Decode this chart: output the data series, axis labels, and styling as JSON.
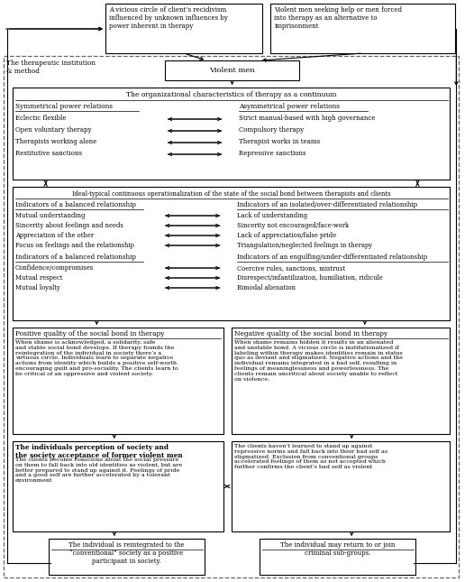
{
  "bg_color": "#ffffff",
  "top_box1_text": "A vicious circle of client’s recidivism\ninfluenced by unknown influences by\npower inherent in therapy",
  "top_box2_text": "Violent men seeking help or men forced\ninto therapy as an alternative to\nimprisonment",
  "inst_label": "The therapeutic institution\n& method",
  "violent_men": "Violent men",
  "org_title": "The organizational characteristics of therapy as a continuum",
  "sym_header": "Symmetrical power relations",
  "asym_header": "Asymmetrical power relations",
  "left_items": [
    "Eclectic flexible",
    "Open voluntary therapy",
    "Therapists working alone",
    "Restitutive sanctions"
  ],
  "right_items": [
    "Strict manual-based with high governance",
    "Compulsory therapy",
    "Therapist works in teams",
    "Repressive sanctions"
  ],
  "bond_title": "Ideal-typical continuous operationalization of the state of the social bond between therapists and clients",
  "bal1_header": "Indicators of a balanced relationship",
  "iso_header": "Indicators of an isolated/over-differentiated relationship",
  "bal1_items": [
    "Mutual understanding",
    "Sincerity about feelings and needs",
    "Appreciation of the other",
    "Focus on feelings and the relationship"
  ],
  "iso_items": [
    "Lack of understanding",
    "Sincerity not encouraged/face-work",
    "Lack of appreciation/false pride",
    "Triangulation/neglected feelings in therapy"
  ],
  "bal2_header": "Indicators of a balanced relationship",
  "eng_header": "Indicators of an engulfing/under-differentiated relationship",
  "bal2_items": [
    "Confidence/compromises",
    "Mutual respect",
    "Mutual loyalty"
  ],
  "eng_items": [
    "Coercive rules, sanctions, mistrust",
    "Disrespect/infantilization, humiliation, ridicule",
    "Bimodal alienation"
  ],
  "pos_header": "Positive quality of the social bond in therapy",
  "pos_text": "When shame is acknowledged, a solidarity, safe\nand stable social bond develops. If therapy founds the\nreintegration of the individual in society there’s a\nvirtuous circle. Individuals learn to separate negative\nactions from identity which builds a positive self-worth\nencouraging guilt and pro-sociality. The clients learn to\nbe critical of an oppressive and violent society.",
  "neg_header": "Negative quality of the social bond in therapy",
  "neg_text": "When shame remains hidden it results in an alienated\nand unstable bond. A vicious circle is institutionalized if\nlabeling within therapy makes identities remain in status\nquo as deviant and stigmatized. Negative actions and the\nindividual remains integrated in a bad self, resulting in\nfeelings of meaninglessness and powerlessness. The\nclients remain uncritical about society unable to reflect\non violence.",
  "soc_header": "The individuals perception of society and\nthe society acceptance of former violent men",
  "soc_left_text": "The clients become conscious about the social pressure\non them to fall back into old identities as violent, but are\nbetter prepared to stand up against it. Feelings of pride\nand a good self are further accelerated by a tolerant\nenvironment",
  "soc_right_text": "The clients haven’t learned to stand up against\nrepressive norms and fall back into their bad self as\nstigmatized. Exclusion from conventional groups\naccelerated feelings of them as not accepted which\nfurther confirms the client’s bad self as violent",
  "bot_left_text": "The individual is reintegrated to the\n“conventional” society as a positive\nparticipant in society.",
  "bot_right_text": "The individual may return to or join\ncriminal sub-groups."
}
